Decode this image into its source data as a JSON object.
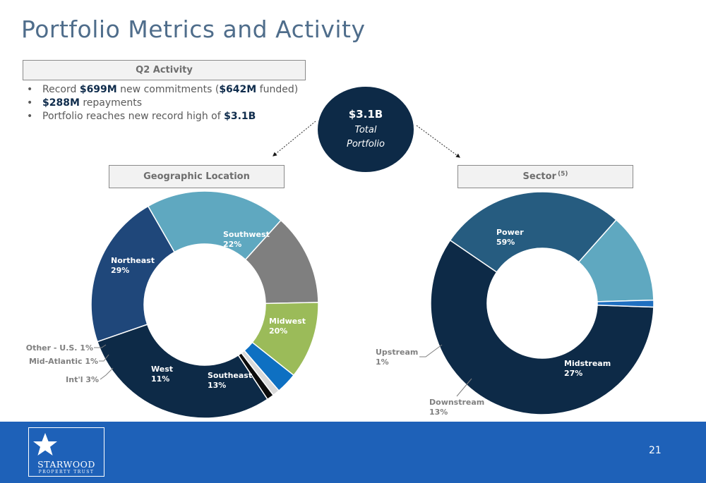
{
  "page": {
    "title": "Portfolio Metrics and Activity",
    "page_number": "21"
  },
  "q2": {
    "header": "Q2 Activity",
    "bullets": [
      {
        "parts": [
          "Record ",
          "$699M",
          " new commitments (",
          "$642M",
          " funded)"
        ]
      },
      {
        "parts": [
          "",
          "$288M",
          " repayments"
        ]
      },
      {
        "parts": [
          "Portfolio reaches new record high of ",
          "$3.1B",
          ""
        ]
      }
    ]
  },
  "total": {
    "value": "$3.1B",
    "line1": "Total",
    "line2": "Portfolio"
  },
  "geo_header": "Geographic Location",
  "sector_header": "Sector",
  "sector_footnote": "(5)",
  "logo": {
    "name": "STARWOOD",
    "sub": "PROPERTY TRUST"
  },
  "colors": {
    "navy": "#0d2a47",
    "dark_blue": "#1f477a",
    "teal": "#5fa8c0",
    "gray": "#7f7f7f",
    "green": "#9bbb59",
    "blue": "#0e70c2",
    "light_gray": "#d9d9d9",
    "black": "#0c0c0c",
    "steel_blue": "#265c80",
    "mid_blue": "#1f6fc0",
    "footer": "#1e61b8"
  },
  "chart_data": [
    {
      "type": "donut",
      "title": "Geographic Location",
      "slices": [
        {
          "label": "Southwest",
          "value": 22,
          "text": "22%",
          "color": "#1f477a"
        },
        {
          "label": "Midwest",
          "value": 20,
          "text": "20%",
          "color": "#5fa8c0"
        },
        {
          "label": "Southeast",
          "value": 13,
          "text": "13%",
          "color": "#7f7f7f"
        },
        {
          "label": "West",
          "value": 11,
          "text": "11%",
          "color": "#9bbb59"
        },
        {
          "label": "Int'l",
          "value": 3,
          "text": "3%",
          "color": "#0e70c2"
        },
        {
          "label": "Mid-Atlantic",
          "value": 1,
          "text": "1%",
          "color": "#d9d9d9"
        },
        {
          "label": "Other - U.S.",
          "value": 1,
          "text": "1%",
          "color": "#0c0c0c"
        },
        {
          "label": "Northeast",
          "value": 29,
          "text": "29%",
          "color": "#0d2a47"
        }
      ]
    },
    {
      "type": "donut",
      "title": "Sector",
      "slices": [
        {
          "label": "Power",
          "value": 59,
          "text": "59%",
          "color": "#0d2a47"
        },
        {
          "label": "Midstream",
          "value": 27,
          "text": "27%",
          "color": "#265c80"
        },
        {
          "label": "Downstream",
          "value": 13,
          "text": "13%",
          "color": "#5fa8c0"
        },
        {
          "label": "Upstream",
          "value": 1,
          "text": "1%",
          "color": "#1f6fc0"
        }
      ]
    }
  ]
}
